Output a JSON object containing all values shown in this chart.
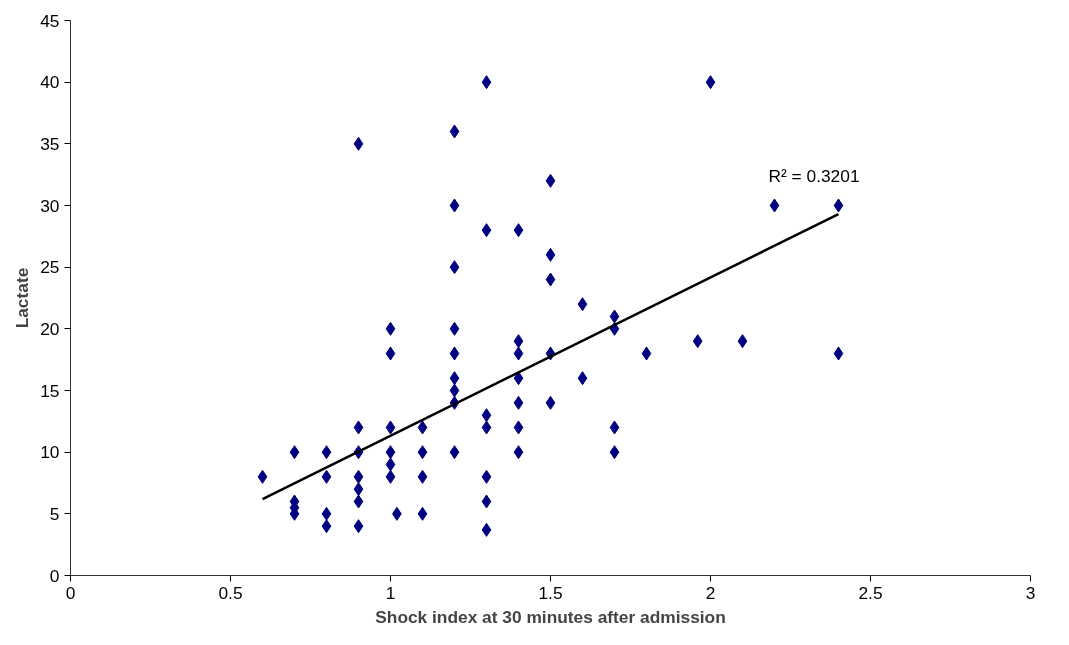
{
  "chart_data": {
    "type": "scatter",
    "xlabel": "Shock index at 30 minutes after admission",
    "ylabel": "Lactate",
    "xlim": [
      0,
      3
    ],
    "xticks": [
      0,
      0.5,
      1,
      1.5,
      2,
      2.5,
      3
    ],
    "ylim": [
      0,
      45
    ],
    "yticks": [
      0,
      5,
      10,
      15,
      20,
      25,
      30,
      35,
      40,
      45
    ],
    "grid": false,
    "annotations": [
      "R² = 0.3201"
    ],
    "series": [
      {
        "color": "#000080",
        "marker": "diamond",
        "x": [
          0.6,
          0.7,
          0.7,
          0.7,
          0.7,
          0.8,
          0.8,
          0.8,
          0.8,
          0.9,
          0.9,
          0.9,
          0.9,
          0.9,
          0.9,
          0.9,
          1.0,
          1.0,
          1.0,
          1.0,
          1.0,
          1.0,
          1.02,
          1.1,
          1.1,
          1.1,
          1.1,
          1.2,
          1.2,
          1.2,
          1.2,
          1.2,
          1.2,
          1.2,
          1.2,
          1.2,
          1.3,
          1.3,
          1.3,
          1.3,
          1.3,
          1.3,
          1.3,
          1.4,
          1.4,
          1.4,
          1.4,
          1.4,
          1.4,
          1.4,
          1.5,
          1.5,
          1.5,
          1.5,
          1.5,
          1.6,
          1.6,
          1.7,
          1.7,
          1.7,
          1.7,
          1.8,
          1.96,
          2.0,
          2.1,
          2.2,
          2.4,
          2.4
        ],
        "values": [
          8,
          10,
          6,
          5.5,
          5,
          10,
          8,
          5,
          4,
          35,
          12,
          10,
          8,
          7,
          6,
          4,
          20,
          18,
          12,
          10,
          9,
          8,
          5,
          12,
          10,
          8,
          5,
          36,
          30,
          25,
          20,
          18,
          16,
          15,
          14,
          10,
          40,
          28,
          13,
          12,
          8,
          6,
          3.7,
          28,
          19,
          18,
          16,
          14,
          12,
          10,
          32,
          26,
          24,
          18,
          14,
          22,
          16,
          21,
          20,
          12,
          10,
          18,
          19,
          40,
          19,
          30,
          30,
          18
        ]
      },
      {
        "type": "line",
        "marker": "none",
        "color": "#000000",
        "x": [
          0.6,
          2.4
        ],
        "values": [
          6.2,
          29.3
        ]
      }
    ]
  }
}
